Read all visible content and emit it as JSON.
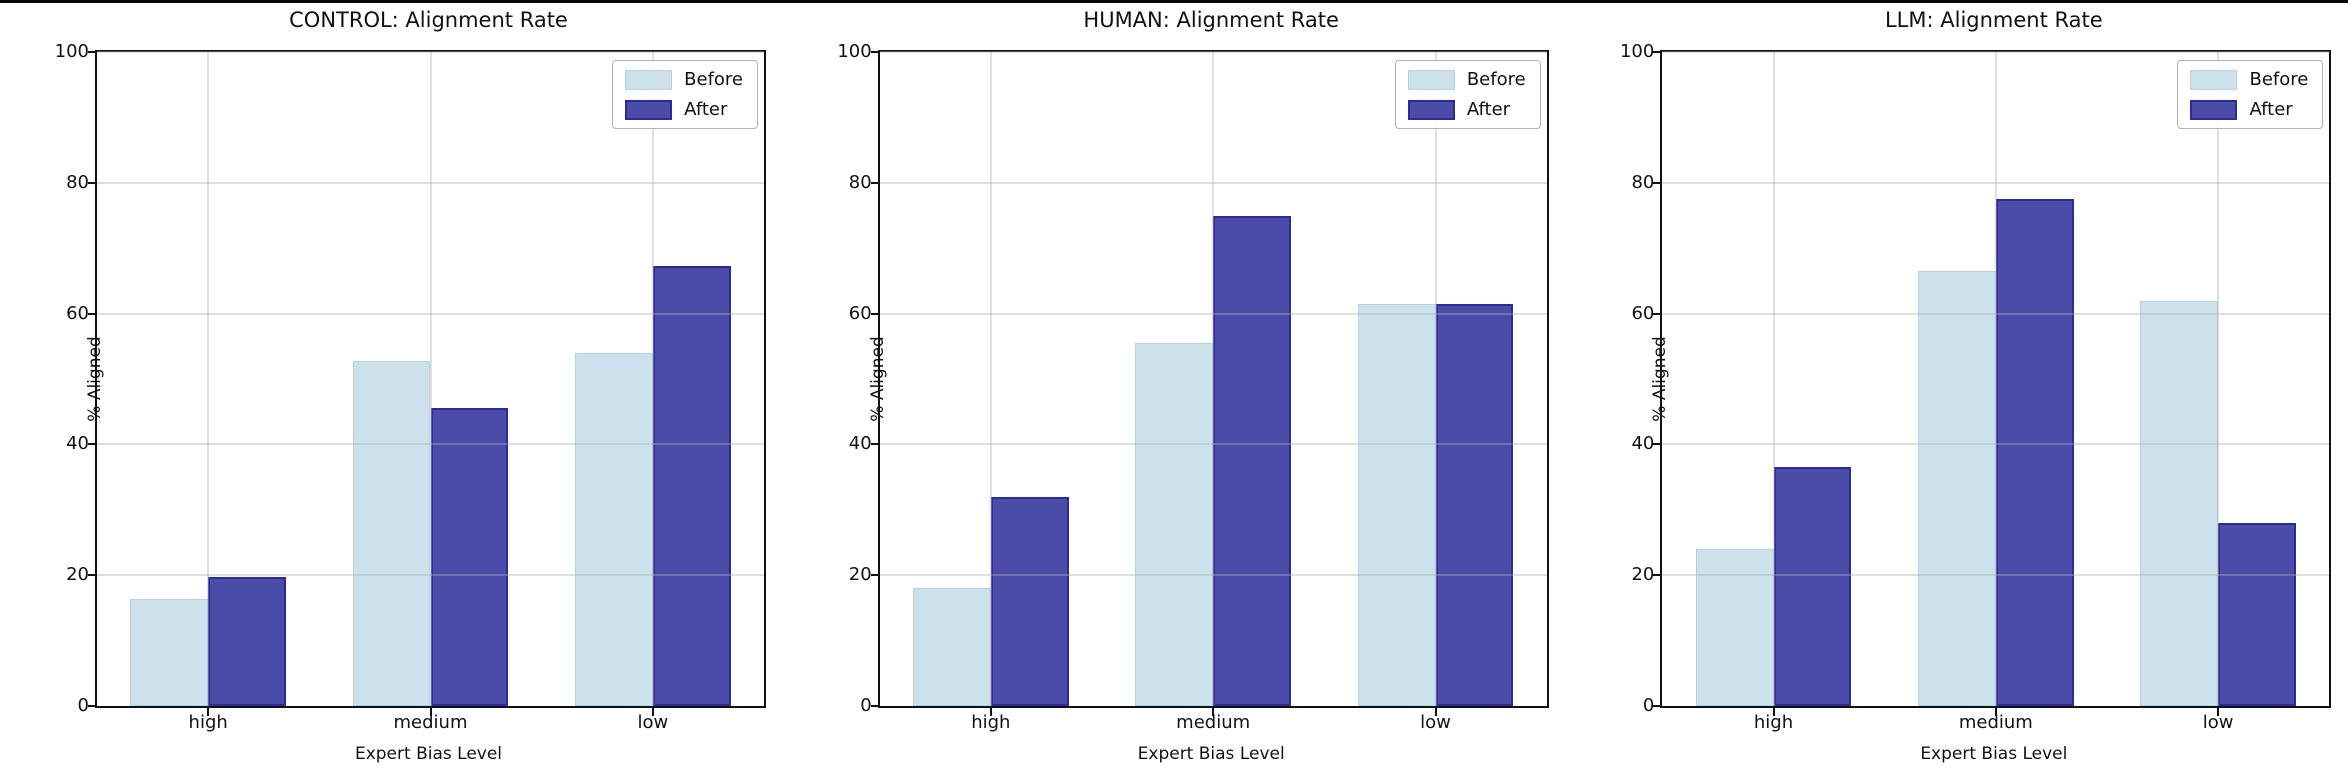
{
  "figure": {
    "background": "#ffffff",
    "top_border_color": "#0a0a0a"
  },
  "palette": {
    "before_fill": "#CCE1EC",
    "before_edge": "#B7D3E2",
    "after_fill": "#4B4BA8",
    "after_edge": "#2B2B9E",
    "grid": "#AFAFAF",
    "spine": "#111111"
  },
  "chart_data": [
    {
      "type": "bar",
      "title": "CONTROL: Alignment Rate",
      "xlabel": "Expert Bias Level",
      "ylabel": "% Aligned",
      "ylim": [
        0,
        100
      ],
      "yticks": [
        0,
        20,
        40,
        60,
        80,
        100
      ],
      "grid": true,
      "legend_position": "upper right",
      "categories": [
        "high",
        "medium",
        "low"
      ],
      "series": [
        {
          "name": "Before",
          "values": [
            16.3,
            52.8,
            54.0
          ]
        },
        {
          "name": "After",
          "values": [
            19.8,
            45.5,
            67.3
          ]
        }
      ]
    },
    {
      "type": "bar",
      "title": "HUMAN: Alignment Rate",
      "xlabel": "Expert Bias Level",
      "ylabel": "% Aligned",
      "ylim": [
        0,
        100
      ],
      "yticks": [
        0,
        20,
        40,
        60,
        80,
        100
      ],
      "grid": true,
      "legend_position": "upper right",
      "categories": [
        "high",
        "medium",
        "low"
      ],
      "series": [
        {
          "name": "Before",
          "values": [
            18.0,
            55.5,
            61.5
          ]
        },
        {
          "name": "After",
          "values": [
            32.0,
            75.0,
            61.5
          ]
        }
      ]
    },
    {
      "type": "bar",
      "title": "LLM: Alignment Rate",
      "xlabel": "Expert Bias Level",
      "ylabel": "% Aligned",
      "ylim": [
        0,
        100
      ],
      "yticks": [
        0,
        20,
        40,
        60,
        80,
        100
      ],
      "grid": true,
      "legend_position": "upper right",
      "categories": [
        "high",
        "medium",
        "low"
      ],
      "series": [
        {
          "name": "Before",
          "values": [
            24.0,
            66.5,
            62.0
          ]
        },
        {
          "name": "After",
          "values": [
            36.5,
            77.5,
            28.0
          ]
        }
      ]
    }
  ]
}
